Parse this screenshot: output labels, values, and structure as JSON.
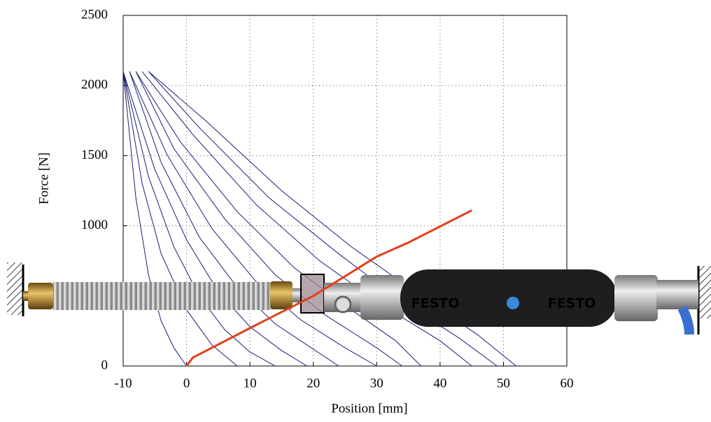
{
  "chart_data": {
    "type": "line",
    "xlabel": "Position [mm]",
    "ylabel": "Force [N]",
    "xlim": [
      -10,
      60
    ],
    "ylim": [
      0,
      2500
    ],
    "xticks": [
      -10,
      0,
      10,
      20,
      30,
      40,
      50,
      60
    ],
    "yticks": [
      0,
      1000,
      1500,
      2000,
      2500
    ],
    "grid": true,
    "series": [
      {
        "color": "#1c1c78",
        "x": [
          -10,
          -8,
          -6,
          -4,
          -2,
          0
        ],
        "values": [
          2100,
          1200,
          650,
          320,
          130,
          0
        ]
      },
      {
        "color": "#1c1c78",
        "x": [
          -10,
          -7,
          -4,
          0,
          4,
          8
        ],
        "values": [
          2100,
          1300,
          800,
          400,
          150,
          0
        ]
      },
      {
        "color": "#1c1c78",
        "x": [
          -10,
          -6,
          -2,
          2,
          6,
          10,
          14
        ],
        "values": [
          2100,
          1350,
          850,
          500,
          260,
          100,
          0
        ]
      },
      {
        "color": "#1c1c78",
        "x": [
          -10,
          -5,
          0,
          5,
          10,
          15,
          19
        ],
        "values": [
          2100,
          1400,
          900,
          530,
          280,
          110,
          0
        ]
      },
      {
        "color": "#1c1c78",
        "x": [
          -9,
          -4,
          2,
          8,
          14,
          20,
          24
        ],
        "values": [
          2100,
          1450,
          920,
          560,
          300,
          120,
          0
        ]
      },
      {
        "color": "#1c1c78",
        "x": [
          -9,
          -3,
          4,
          11,
          18,
          25,
          30
        ],
        "values": [
          2100,
          1500,
          980,
          600,
          330,
          130,
          0
        ]
      },
      {
        "color": "#1c1c78",
        "x": [
          -8,
          -2,
          6,
          14,
          22,
          30,
          34
        ],
        "values": [
          2100,
          1550,
          1050,
          650,
          360,
          130,
          0
        ]
      },
      {
        "color": "#1c1c78",
        "x": [
          -8,
          -1,
          8,
          17,
          26,
          33,
          37
        ],
        "values": [
          2100,
          1600,
          1100,
          700,
          400,
          180,
          0
        ]
      },
      {
        "color": "#1c1c78",
        "x": [
          -7,
          1,
          11,
          21,
          31,
          40,
          45
        ],
        "values": [
          2100,
          1650,
          1150,
          750,
          430,
          180,
          0
        ]
      },
      {
        "color": "#1c1c78",
        "x": [
          -6,
          2,
          13,
          24,
          34,
          43,
          49
        ],
        "values": [
          2100,
          1700,
          1200,
          800,
          460,
          200,
          0
        ]
      },
      {
        "color": "#1c1c78",
        "x": [
          -6,
          3,
          15,
          26,
          37,
          46,
          52
        ],
        "values": [
          2100,
          1750,
          1250,
          850,
          500,
          220,
          0
        ]
      },
      {
        "color": "#e0401a",
        "x": [
          0,
          1,
          10,
          20,
          30,
          35,
          45
        ],
        "values": [
          0,
          60,
          270,
          500,
          780,
          880,
          1110
        ]
      }
    ]
  }
}
